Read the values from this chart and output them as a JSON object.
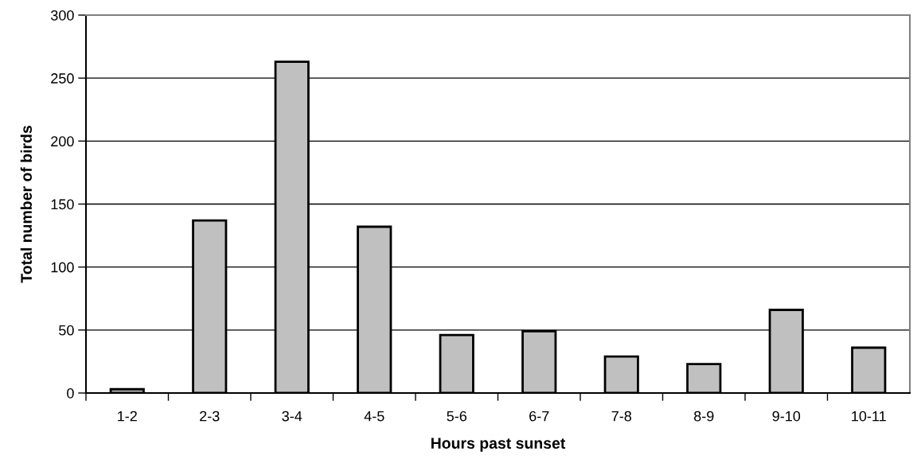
{
  "chart_data": {
    "type": "bar",
    "xlabel": "Hours past sunset",
    "ylabel": "Total number of birds",
    "categories": [
      "1-2",
      "2-3",
      "3-4",
      "4-5",
      "5-6",
      "6-7",
      "7-8",
      "8-9",
      "9-10",
      "10-11"
    ],
    "values": [
      3,
      137,
      263,
      132,
      46,
      49,
      29,
      23,
      66,
      36
    ],
    "color": "#c0c0c0",
    "ylim": [
      0,
      300
    ],
    "yticks": [
      0,
      50,
      100,
      150,
      200,
      250,
      300
    ],
    "grid": "y",
    "legend": false
  }
}
